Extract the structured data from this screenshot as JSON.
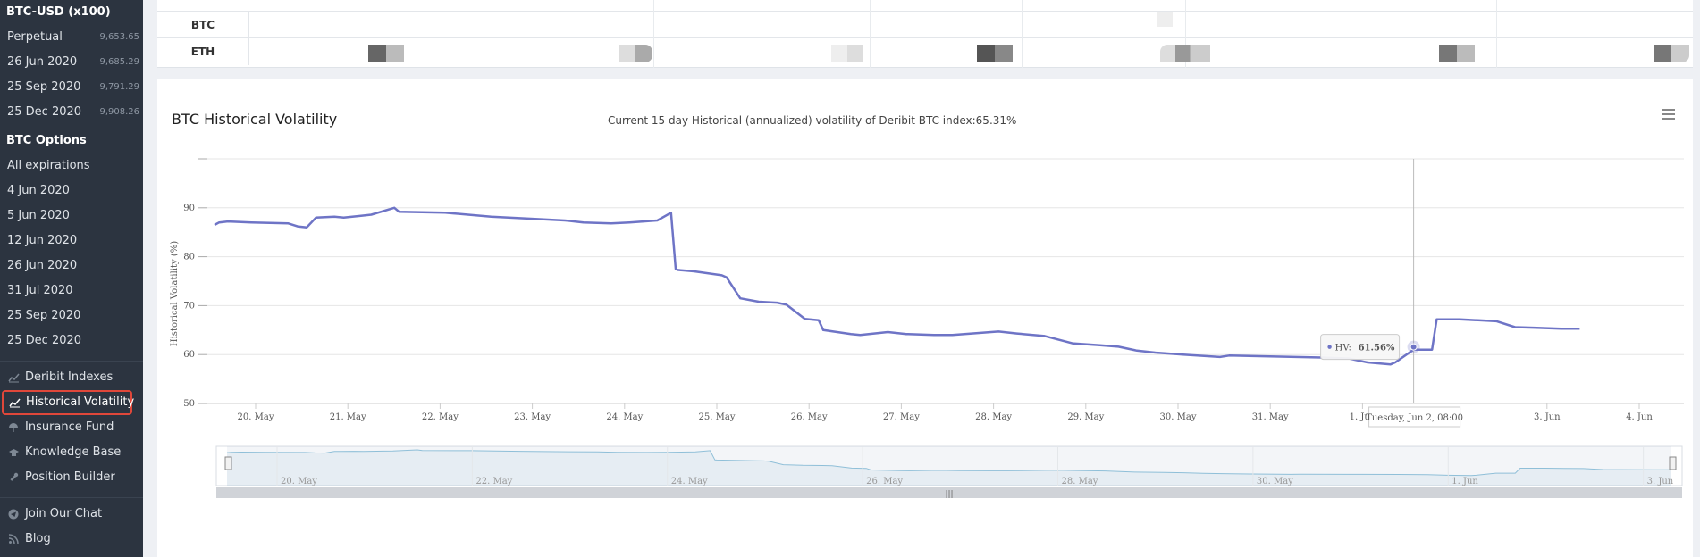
{
  "sidebar": {
    "futures_header": "BTC-USD (x100)",
    "futures": [
      {
        "label": "Perpetual",
        "value": "9,653.65"
      },
      {
        "label": "26 Jun 2020",
        "value": "9,685.29"
      },
      {
        "label": "25 Sep 2020",
        "value": "9,791.29"
      },
      {
        "label": "25 Dec 2020",
        "value": "9,908.26"
      }
    ],
    "options_header": "BTC Options",
    "options": [
      {
        "label": "All expirations"
      },
      {
        "label": "4 Jun 2020"
      },
      {
        "label": "5 Jun 2020"
      },
      {
        "label": "12 Jun 2020"
      },
      {
        "label": "26 Jun 2020"
      },
      {
        "label": "31 Jul 2020"
      },
      {
        "label": "25 Sep 2020"
      },
      {
        "label": "25 Dec 2020"
      }
    ],
    "links": [
      {
        "label": "Deribit Indexes",
        "icon": "chart-icon"
      },
      {
        "label": "Historical Volatility",
        "icon": "chart-icon",
        "active": true
      },
      {
        "label": "Insurance Fund",
        "icon": "umbrella-icon"
      },
      {
        "label": "Knowledge Base",
        "icon": "graduation-cap-icon"
      },
      {
        "label": "Position Builder",
        "icon": "wrench-icon"
      }
    ],
    "links2": [
      {
        "label": "Join Our Chat",
        "icon": "telegram-icon"
      },
      {
        "label": "Blog",
        "icon": "rss-icon"
      }
    ],
    "active_border_color": "#e0473a"
  },
  "top_table": {
    "rows": [
      {
        "label": "BTC"
      },
      {
        "label": "ETH"
      }
    ]
  },
  "chart": {
    "title": "BTC Historical Volatility",
    "subtitle": "Current 15 day Historical (annualized) volatility of Deribit BTC index:65.31%",
    "tooltip_series": "HV:",
    "tooltip_value": "61.56%",
    "crosshair_label": "Tuesday, Jun 2, 08:00",
    "line_color": "#6e74c6"
  },
  "chart_data": {
    "type": "line",
    "title": "",
    "ylabel": "Historical Volatility (%)",
    "xlabel": "",
    "ylim": [
      50,
      100
    ],
    "yticks": [
      "50",
      "60",
      "70",
      "80",
      "90"
    ],
    "xticks": [
      "20. May",
      "21. May",
      "22. May",
      "23. May",
      "24. May",
      "25. May",
      "26. May",
      "27. May",
      "28. May",
      "29. May",
      "30. May",
      "31. May",
      "1. Jun",
      "3. Jun",
      "4. Jun"
    ],
    "navigator_ticks": [
      "20. May",
      "22. May",
      "24. May",
      "26. May",
      "28. May",
      "30. May",
      "1. Jun",
      "3. Jun"
    ],
    "series": [
      {
        "name": "HV",
        "x": [
          0.0,
          0.05,
          0.15,
          0.4,
          0.8,
          0.9,
          1.0,
          1.1,
          1.3,
          1.4,
          1.6,
          1.7,
          1.95,
          2.0,
          2.5,
          3.0,
          3.5,
          3.8,
          4.0,
          4.3,
          4.5,
          4.8,
          4.95,
          5.0,
          5.02,
          5.2,
          5.5,
          5.55,
          5.7,
          5.9,
          6.1,
          6.2,
          6.4,
          6.55,
          6.6,
          6.9,
          7.0,
          7.3,
          7.5,
          7.8,
          8.0,
          8.5,
          8.7,
          9.0,
          9.3,
          9.6,
          9.8,
          10.0,
          10.2,
          10.5,
          10.9,
          11.0,
          11.5,
          12.0,
          12.3,
          12.5,
          12.75,
          12.8,
          13.0,
          13.2,
          13.25,
          13.5,
          13.7,
          13.9,
          14.1,
          14.3,
          14.6,
          14.8
        ],
        "values": [
          86.5,
          87.0,
          87.2,
          87.0,
          86.8,
          86.2,
          86.0,
          88.0,
          88.2,
          88.0,
          88.4,
          88.6,
          90.0,
          89.2,
          89.0,
          88.2,
          87.7,
          87.4,
          87.0,
          86.8,
          87.0,
          87.4,
          89.0,
          77.5,
          77.3,
          77.0,
          76.2,
          75.8,
          71.5,
          70.8,
          70.6,
          70.2,
          67.3,
          67.0,
          65.0,
          64.2,
          64.0,
          64.6,
          64.2,
          64.0,
          64.0,
          64.7,
          64.3,
          63.8,
          62.3,
          61.9,
          61.6,
          60.8,
          60.4,
          60.0,
          59.5,
          59.8,
          59.6,
          59.4,
          59.2,
          58.4,
          58.0,
          58.4,
          61.0,
          61.0,
          67.2,
          67.2,
          67.0,
          66.8,
          65.6,
          65.5,
          65.3,
          65.3
        ]
      }
    ],
    "crosshair_x": 13.0,
    "legend": "none",
    "grid": true
  }
}
